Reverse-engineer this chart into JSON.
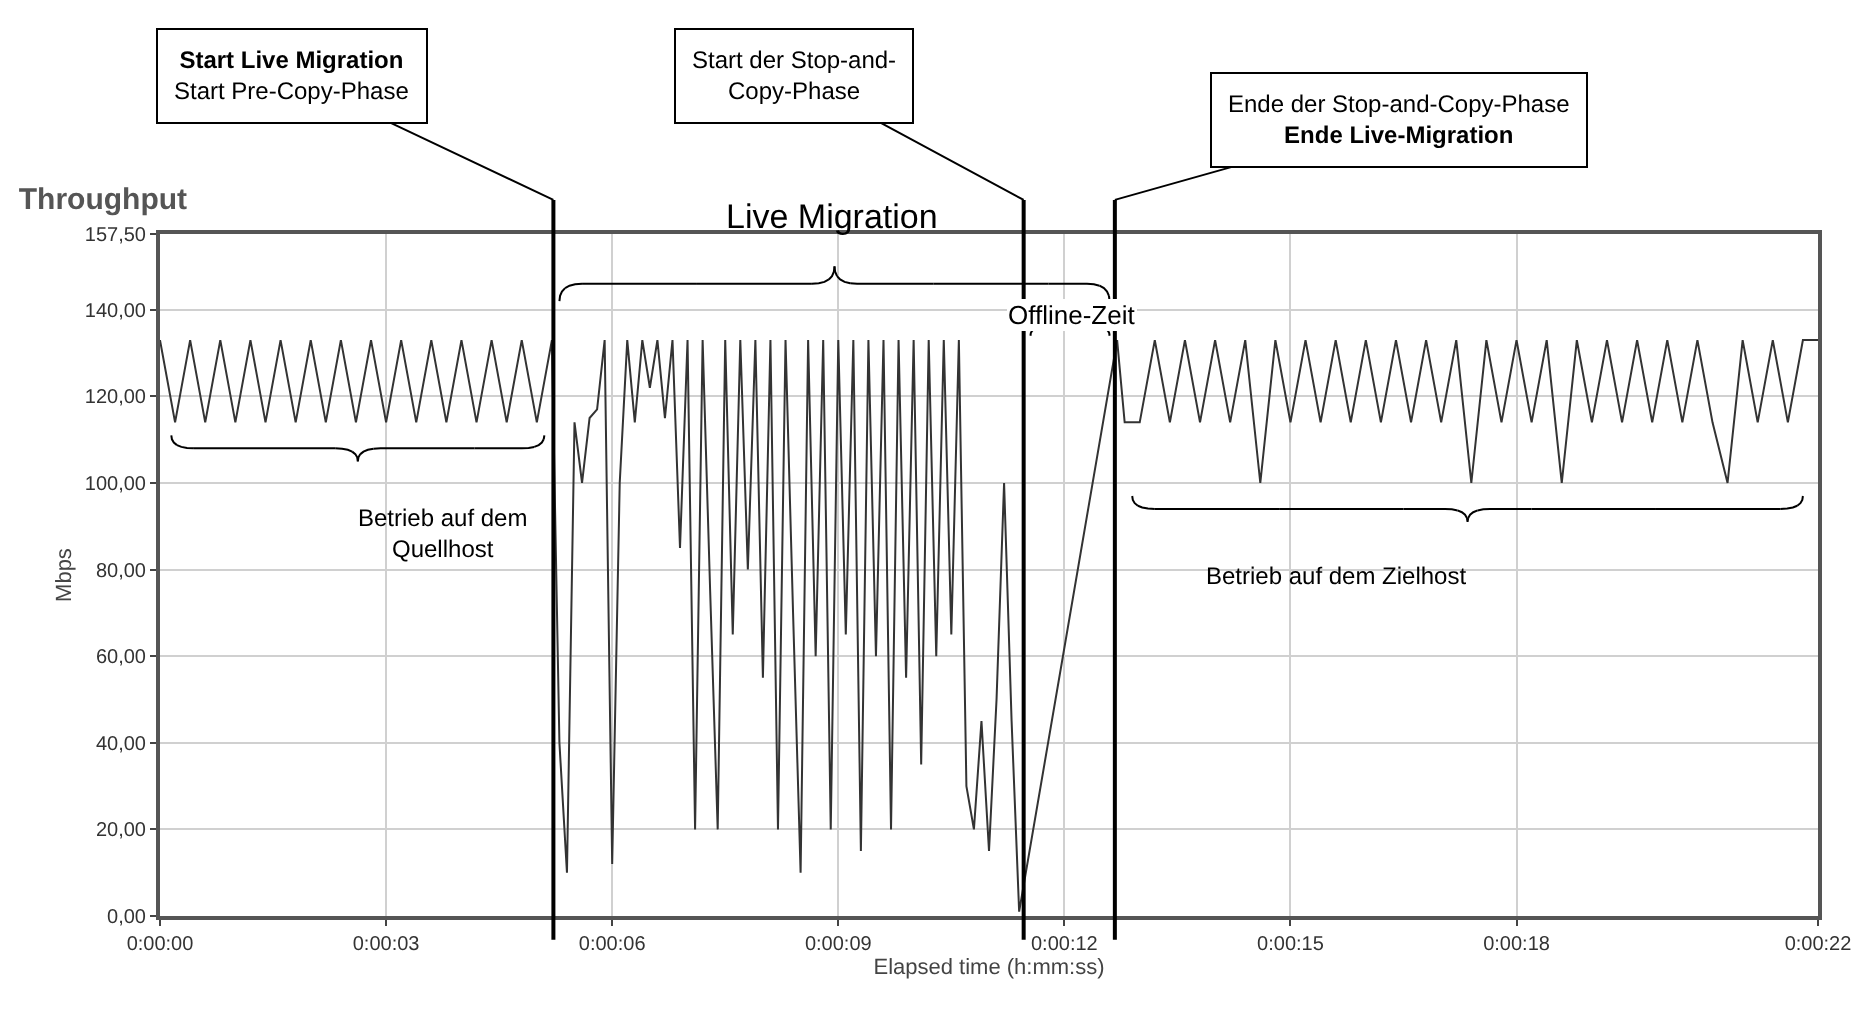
{
  "chart_data": {
    "type": "line",
    "title": "Throughput",
    "xlabel": "Elapsed time (h:mm:ss)",
    "ylabel": "Mbps",
    "x": [
      0,
      0.2,
      0.4,
      0.6,
      0.8,
      1.0,
      1.2,
      1.4,
      1.6,
      1.8,
      2.0,
      2.2,
      2.4,
      2.6,
      2.8,
      3.0,
      3.2,
      3.4,
      3.6,
      3.8,
      4.0,
      4.2,
      4.4,
      4.6,
      4.8,
      5.0,
      5.2,
      5.3,
      5.4,
      5.5,
      5.6,
      5.7,
      5.8,
      5.9,
      6.0,
      6.1,
      6.2,
      6.3,
      6.4,
      6.5,
      6.6,
      6.7,
      6.8,
      6.9,
      7.0,
      7.1,
      7.2,
      7.3,
      7.4,
      7.5,
      7.6,
      7.7,
      7.8,
      7.9,
      8.0,
      8.1,
      8.2,
      8.3,
      8.4,
      8.5,
      8.6,
      8.7,
      8.8,
      8.9,
      9.0,
      9.1,
      9.2,
      9.3,
      9.4,
      9.5,
      9.6,
      9.7,
      9.8,
      9.9,
      10.0,
      10.1,
      10.2,
      10.3,
      10.4,
      10.5,
      10.6,
      10.7,
      10.8,
      10.9,
      11.0,
      11.1,
      11.2,
      11.3,
      11.4,
      12.7,
      12.8,
      13.0,
      13.2,
      13.4,
      13.6,
      13.8,
      14.0,
      14.2,
      14.4,
      14.6,
      14.8,
      15.0,
      15.2,
      15.4,
      15.6,
      15.8,
      16.0,
      16.2,
      16.4,
      16.6,
      16.8,
      17.0,
      17.2,
      17.4,
      17.6,
      17.8,
      18.0,
      18.2,
      18.4,
      18.6,
      18.8,
      19.0,
      19.2,
      19.4,
      19.6,
      19.8,
      20.0,
      20.2,
      20.4,
      20.6,
      20.8,
      21.0,
      21.2,
      21.4,
      21.6,
      21.8,
      22.0
    ],
    "series": [
      {
        "color": "#333333",
        "values": [
          133,
          114,
          133,
          114,
          133,
          114,
          133,
          114,
          133,
          114,
          133,
          114,
          133,
          114,
          133,
          114,
          133,
          114,
          133,
          114,
          133,
          114,
          133,
          114,
          133,
          114,
          133,
          40,
          10,
          114,
          100,
          115,
          117,
          133,
          12,
          100,
          133,
          114,
          133,
          122,
          133,
          115,
          133,
          85,
          133,
          20,
          133,
          75,
          20,
          133,
          65,
          133,
          80,
          133,
          55,
          133,
          20,
          133,
          70,
          10,
          133,
          60,
          133,
          20,
          133,
          65,
          133,
          15,
          133,
          60,
          133,
          20,
          133,
          55,
          133,
          35,
          133,
          60,
          133,
          65,
          133,
          30,
          20,
          45,
          15,
          50,
          100,
          45,
          1,
          133,
          114,
          114,
          133,
          114,
          133,
          114,
          133,
          114,
          133,
          100,
          133,
          114,
          133,
          114,
          133,
          114,
          133,
          114,
          133,
          114,
          133,
          114,
          133,
          100,
          133,
          114,
          133,
          114,
          133,
          100,
          133,
          114,
          133,
          114,
          133,
          114,
          133,
          114,
          133,
          114,
          100,
          133,
          114,
          133,
          114,
          133,
          133
        ]
      }
    ],
    "xlim": [
      0,
      22
    ],
    "xticks": [
      {
        "value": 0,
        "label": "0:00:00"
      },
      {
        "value": 3,
        "label": "0:00:03"
      },
      {
        "value": 6,
        "label": "0:00:06"
      },
      {
        "value": 9,
        "label": "0:00:09"
      },
      {
        "value": 12,
        "label": "0:00:12"
      },
      {
        "value": 15,
        "label": "0:00:15"
      },
      {
        "value": 18,
        "label": "0:00:18"
      },
      {
        "value": 22,
        "label": "0:00:22"
      }
    ],
    "ylim": [
      0,
      157.5
    ],
    "yticks": [
      {
        "value": 0,
        "label": "0,00"
      },
      {
        "value": 20,
        "label": "20,00"
      },
      {
        "value": 40,
        "label": "40,00"
      },
      {
        "value": 60,
        "label": "60,00"
      },
      {
        "value": 80,
        "label": "80,00"
      },
      {
        "value": 100,
        "label": "100,00"
      },
      {
        "value": 120,
        "label": "120,00"
      },
      {
        "value": 140,
        "label": "140,00"
      },
      {
        "value": 157.5,
        "label": "157,50"
      }
    ],
    "grid": true,
    "marker": "none",
    "line_style": "solid",
    "ref_lines": [
      {
        "axis": "x",
        "value": 5.22,
        "label": "Start Live Migration\nStart Pre-Copy-Phase",
        "color": "#000000"
      },
      {
        "axis": "x",
        "value": 11.46,
        "label": "Start der Stop-and-\nCopy-Phase",
        "color": "#000000"
      },
      {
        "axis": "x",
        "value": 12.67,
        "label": "Ende der Stop-and-Copy-Phase\nEnde Live-Migration",
        "color": "#000000"
      }
    ],
    "annotations": [
      "Live Migration",
      "Offline-Zeit",
      "Betrieb auf dem\nQuellhost",
      "Betrieb auf dem Zielhost"
    ]
  }
}
